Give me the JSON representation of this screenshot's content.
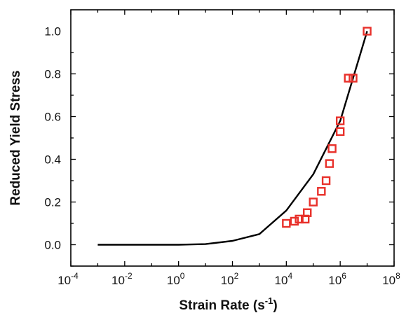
{
  "chart_data": {
    "type": "line",
    "title": "",
    "xlabel": {
      "text": "Strain Rate (s",
      "sup": "-1",
      "close": ")"
    },
    "ylabel": "Reduced Yield Stress",
    "x_scale": "log10",
    "x_range": [
      0.0001,
      100000000
    ],
    "y_range": [
      -0.1,
      1.1
    ],
    "grid": false,
    "legend": "none",
    "x_ticks": [
      {
        "value": 0.0001,
        "base": "10",
        "exp": "-4"
      },
      {
        "value": 0.01,
        "base": "10",
        "exp": "-2"
      },
      {
        "value": 1,
        "base": "10",
        "exp": "0"
      },
      {
        "value": 100,
        "base": "10",
        "exp": "2"
      },
      {
        "value": 10000,
        "base": "10",
        "exp": "4"
      },
      {
        "value": 1000000,
        "base": "10",
        "exp": "6"
      },
      {
        "value": 100000000,
        "base": "10",
        "exp": "8"
      }
    ],
    "y_ticks": [
      {
        "value": 0.0,
        "label": "0.0"
      },
      {
        "value": 0.2,
        "label": "0.2"
      },
      {
        "value": 0.4,
        "label": "0.4"
      },
      {
        "value": 0.6,
        "label": "0.6"
      },
      {
        "value": 0.8,
        "label": "0.8"
      },
      {
        "value": 1.0,
        "label": "1.0"
      }
    ],
    "series": [
      {
        "kind": "line",
        "color": "#000000",
        "points": [
          {
            "x": 0.001,
            "y": 0.0
          },
          {
            "x": 1,
            "y": 0.0
          },
          {
            "x": 10,
            "y": 0.003
          },
          {
            "x": 100,
            "y": 0.018
          },
          {
            "x": 1000,
            "y": 0.05
          },
          {
            "x": 10000,
            "y": 0.16
          },
          {
            "x": 100000,
            "y": 0.33
          },
          {
            "x": 1000000,
            "y": 0.58
          },
          {
            "x": 10000000,
            "y": 1.0
          }
        ]
      },
      {
        "kind": "scatter",
        "marker": "open-square",
        "color": "#e8302a",
        "points": [
          {
            "x": 10000,
            "y": 0.1
          },
          {
            "x": 20000,
            "y": 0.11
          },
          {
            "x": 30000,
            "y": 0.12
          },
          {
            "x": 50000,
            "y": 0.12
          },
          {
            "x": 60000,
            "y": 0.15
          },
          {
            "x": 100000,
            "y": 0.2
          },
          {
            "x": 200000,
            "y": 0.25
          },
          {
            "x": 300000,
            "y": 0.3
          },
          {
            "x": 400000,
            "y": 0.38
          },
          {
            "x": 500000,
            "y": 0.45
          },
          {
            "x": 1000000,
            "y": 0.53
          },
          {
            "x": 1000000,
            "y": 0.58
          },
          {
            "x": 2000000,
            "y": 0.78
          },
          {
            "x": 3000000,
            "y": 0.78
          },
          {
            "x": 10000000,
            "y": 1.0
          }
        ]
      }
    ]
  }
}
